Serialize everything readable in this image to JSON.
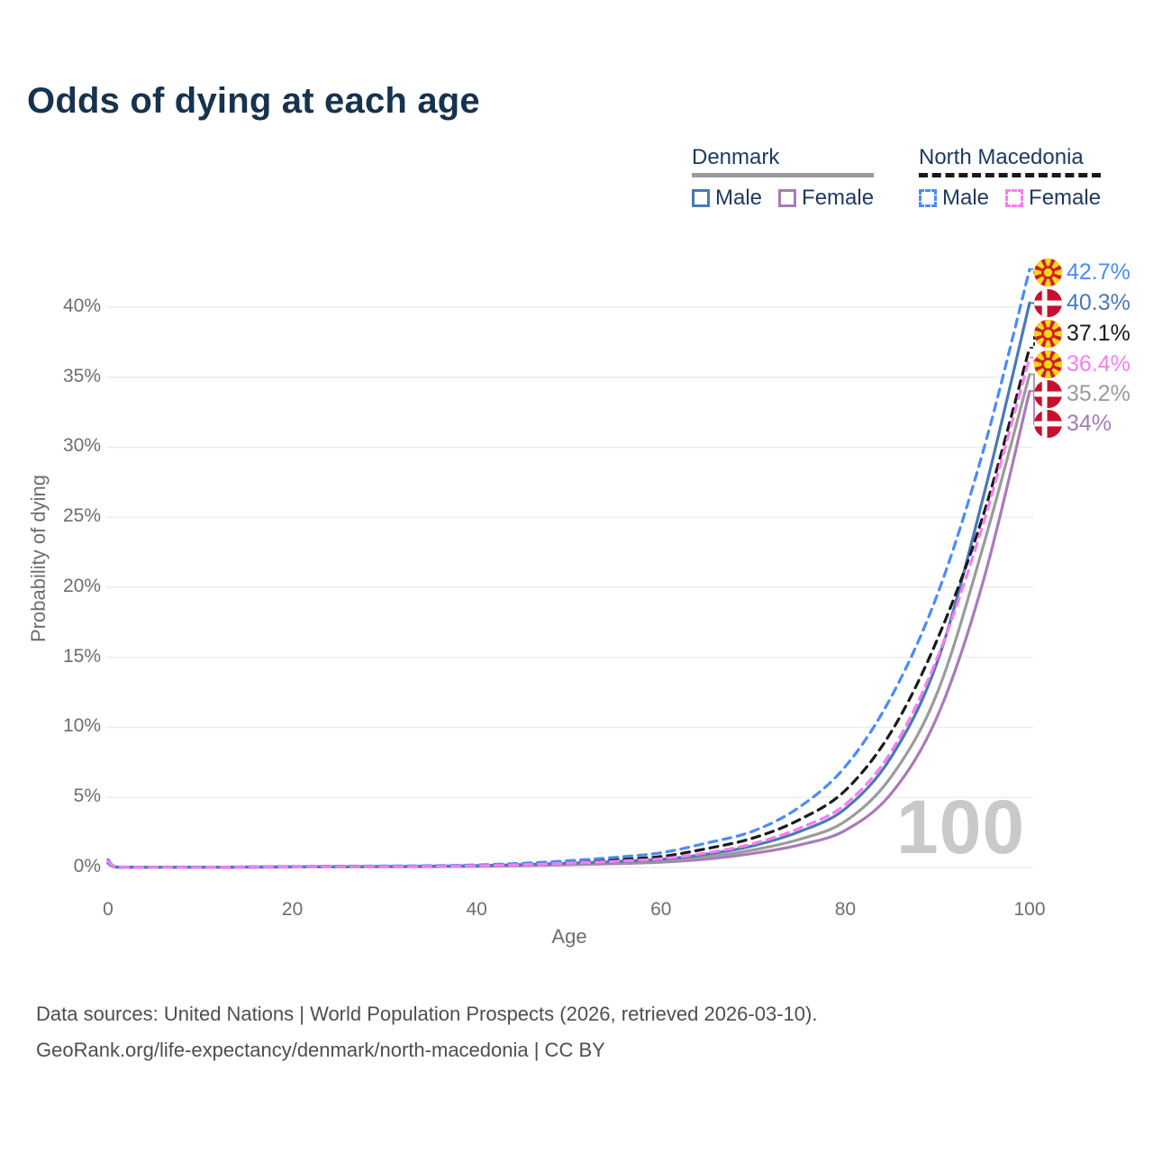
{
  "title": "Odds of dying at each age",
  "watermark": "100",
  "colors": {
    "title_text": "#16324f",
    "legend_text": "#1d3a5e",
    "axis_text": "#6e6e6e",
    "grid": "#ececec",
    "watermark": "#c9c9c9",
    "footer_text": "#4e4e4e",
    "denmark_underline": "#9b9b9b",
    "north_macedonia_underline": "#1a1a1a"
  },
  "legend": {
    "denmark": {
      "label": "Denmark",
      "male_label": "Male",
      "female_label": "Female"
    },
    "north_macedonia": {
      "label": "North Macedonia",
      "male_label": "Male",
      "female_label": "Female"
    }
  },
  "chart_data": {
    "type": "line",
    "title": "Odds of dying at each age",
    "xlabel": "Age",
    "ylabel": "Probability of dying",
    "xlim": [
      0,
      100
    ],
    "ylim": [
      0,
      44
    ],
    "xticks": [
      0,
      20,
      40,
      60,
      80,
      100
    ],
    "yticks": [
      "0%",
      "5%",
      "10%",
      "15%",
      "20%",
      "25%",
      "30%",
      "35%",
      "40%"
    ],
    "ytick_values": [
      0,
      5,
      10,
      15,
      20,
      25,
      30,
      35,
      40
    ],
    "grid": "horizontal-only",
    "legend_position": "top-right",
    "ages": [
      0,
      1,
      5,
      10,
      15,
      20,
      25,
      30,
      35,
      40,
      45,
      50,
      55,
      60,
      65,
      70,
      75,
      80,
      85,
      90,
      95,
      100
    ],
    "series": [
      {
        "id": "nm_male",
        "name": "North Macedonia male",
        "country": "North Macedonia",
        "sex": "male",
        "color": "#4b8bf7",
        "dash": true,
        "flag": "mk",
        "end_label": "42.7%",
        "end_value": 42.7,
        "values": [
          0.55,
          0.05,
          0.02,
          0.02,
          0.04,
          0.07,
          0.09,
          0.1,
          0.13,
          0.18,
          0.3,
          0.48,
          0.72,
          1.05,
          1.75,
          2.6,
          4.3,
          7.2,
          12.2,
          19.5,
          29.8,
          42.7
        ]
      },
      {
        "id": "dk_male",
        "name": "Denmark male",
        "country": "Denmark",
        "sex": "male",
        "color": "#4a79b6",
        "dash": false,
        "flag": "dk",
        "end_label": "40.3%",
        "end_value": 40.3,
        "values": [
          0.35,
          0.03,
          0.01,
          0.01,
          0.03,
          0.05,
          0.06,
          0.07,
          0.09,
          0.13,
          0.2,
          0.3,
          0.42,
          0.58,
          0.95,
          1.55,
          2.55,
          4.2,
          7.9,
          14.7,
          26.5,
          40.3
        ]
      },
      {
        "id": "nm_all",
        "name": "North Macedonia both sexes",
        "country": "North Macedonia",
        "sex": "all",
        "color": "#1a1a1a",
        "dash": true,
        "flag": "mk",
        "end_label": "37.1%",
        "end_value": 37.1,
        "values": [
          0.5,
          0.04,
          0.02,
          0.02,
          0.03,
          0.05,
          0.07,
          0.08,
          0.1,
          0.15,
          0.24,
          0.38,
          0.56,
          0.78,
          1.35,
          2.1,
          3.4,
          5.5,
          9.7,
          16.3,
          25.2,
          37.1
        ]
      },
      {
        "id": "nm_female",
        "name": "North Macedonia female",
        "country": "North Macedonia",
        "sex": "female",
        "color": "#fb7cf1",
        "dash": true,
        "flag": "mk",
        "end_label": "36.4%",
        "end_value": 36.4,
        "values": [
          0.45,
          0.04,
          0.015,
          0.015,
          0.025,
          0.04,
          0.05,
          0.06,
          0.08,
          0.12,
          0.19,
          0.3,
          0.44,
          0.62,
          1.05,
          1.7,
          2.8,
          4.5,
          8.3,
          15.0,
          24.6,
          36.4
        ]
      },
      {
        "id": "dk_all",
        "name": "Denmark both sexes",
        "country": "Denmark",
        "sex": "all",
        "color": "#9b9b9b",
        "dash": false,
        "flag": "dk",
        "end_label": "35.2%",
        "end_value": 35.2,
        "values": [
          0.3,
          0.02,
          0.01,
          0.01,
          0.02,
          0.04,
          0.05,
          0.06,
          0.07,
          0.1,
          0.16,
          0.24,
          0.34,
          0.46,
          0.75,
          1.25,
          2.0,
          3.3,
          6.5,
          12.5,
          23.0,
          35.2
        ]
      },
      {
        "id": "dk_female",
        "name": "Denmark female",
        "country": "Denmark",
        "sex": "female",
        "color": "#aa7ab9",
        "dash": false,
        "flag": "dk",
        "end_label": "34%",
        "end_value": 34.0,
        "values": [
          0.28,
          0.02,
          0.008,
          0.008,
          0.015,
          0.03,
          0.04,
          0.05,
          0.06,
          0.08,
          0.13,
          0.19,
          0.27,
          0.38,
          0.6,
          1.0,
          1.6,
          2.65,
          5.3,
          10.8,
          20.5,
          34.0
        ]
      }
    ]
  },
  "age_counter": "100",
  "footer": {
    "line1": "Data sources: United Nations | World Population Prospects (2026, retrieved 2026-03-10).",
    "line2": "GeoRank.org/life-expectancy/denmark/north-macedonia | CC BY"
  }
}
